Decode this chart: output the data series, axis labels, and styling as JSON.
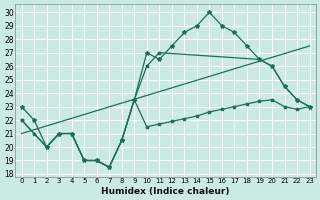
{
  "xlabel": "Humidex (Indice chaleur)",
  "bg_color": "#cceae4",
  "grid_color": "#b0d8d0",
  "line_color": "#1e6e5a",
  "xlim": [
    -0.5,
    23.5
  ],
  "ylim": [
    17.8,
    30.6
  ],
  "yticks": [
    18,
    19,
    20,
    21,
    22,
    23,
    24,
    25,
    26,
    27,
    28,
    29,
    30
  ],
  "xticks": [
    0,
    1,
    2,
    3,
    4,
    5,
    6,
    7,
    8,
    9,
    10,
    11,
    12,
    13,
    14,
    15,
    16,
    17,
    18,
    19,
    20,
    21,
    22,
    23
  ],
  "line1_x": [
    0,
    1,
    2,
    3,
    4,
    5,
    6,
    7,
    8,
    9,
    10,
    11,
    12,
    13,
    14,
    15,
    16,
    17,
    18,
    19,
    20,
    21,
    22,
    23
  ],
  "line1_y": [
    23.0,
    22.0,
    20.0,
    21.0,
    21.0,
    19.0,
    19.0,
    18.5,
    20.5,
    23.5,
    27.0,
    26.5,
    27.5,
    28.5,
    29.0,
    30.0,
    29.0,
    28.5,
    27.5,
    26.5,
    26.0,
    24.5,
    23.5,
    23.0
  ],
  "line2_x": [
    0,
    1,
    2,
    3,
    4,
    5,
    6,
    7,
    8,
    9,
    10,
    11,
    12,
    13,
    14,
    15,
    16,
    17,
    18,
    19,
    20,
    21,
    22,
    23
  ],
  "line2_y": [
    22.0,
    21.0,
    20.0,
    21.0,
    21.0,
    19.0,
    19.0,
    18.5,
    20.5,
    23.5,
    21.5,
    21.7,
    21.9,
    22.1,
    22.3,
    22.6,
    22.8,
    23.0,
    23.2,
    23.4,
    23.5,
    23.0,
    22.8,
    23.0
  ],
  "line3_x": [
    0,
    23
  ],
  "line3_y": [
    21.0,
    27.5
  ],
  "line4_x": [
    0,
    2,
    3,
    4,
    5,
    6,
    7,
    8,
    9,
    10,
    11,
    19,
    20,
    21,
    22,
    23
  ],
  "line4_y": [
    22.0,
    20.0,
    21.0,
    21.0,
    19.0,
    19.0,
    18.5,
    20.5,
    23.5,
    26.0,
    27.0,
    26.5,
    26.0,
    24.5,
    23.5,
    23.0
  ]
}
